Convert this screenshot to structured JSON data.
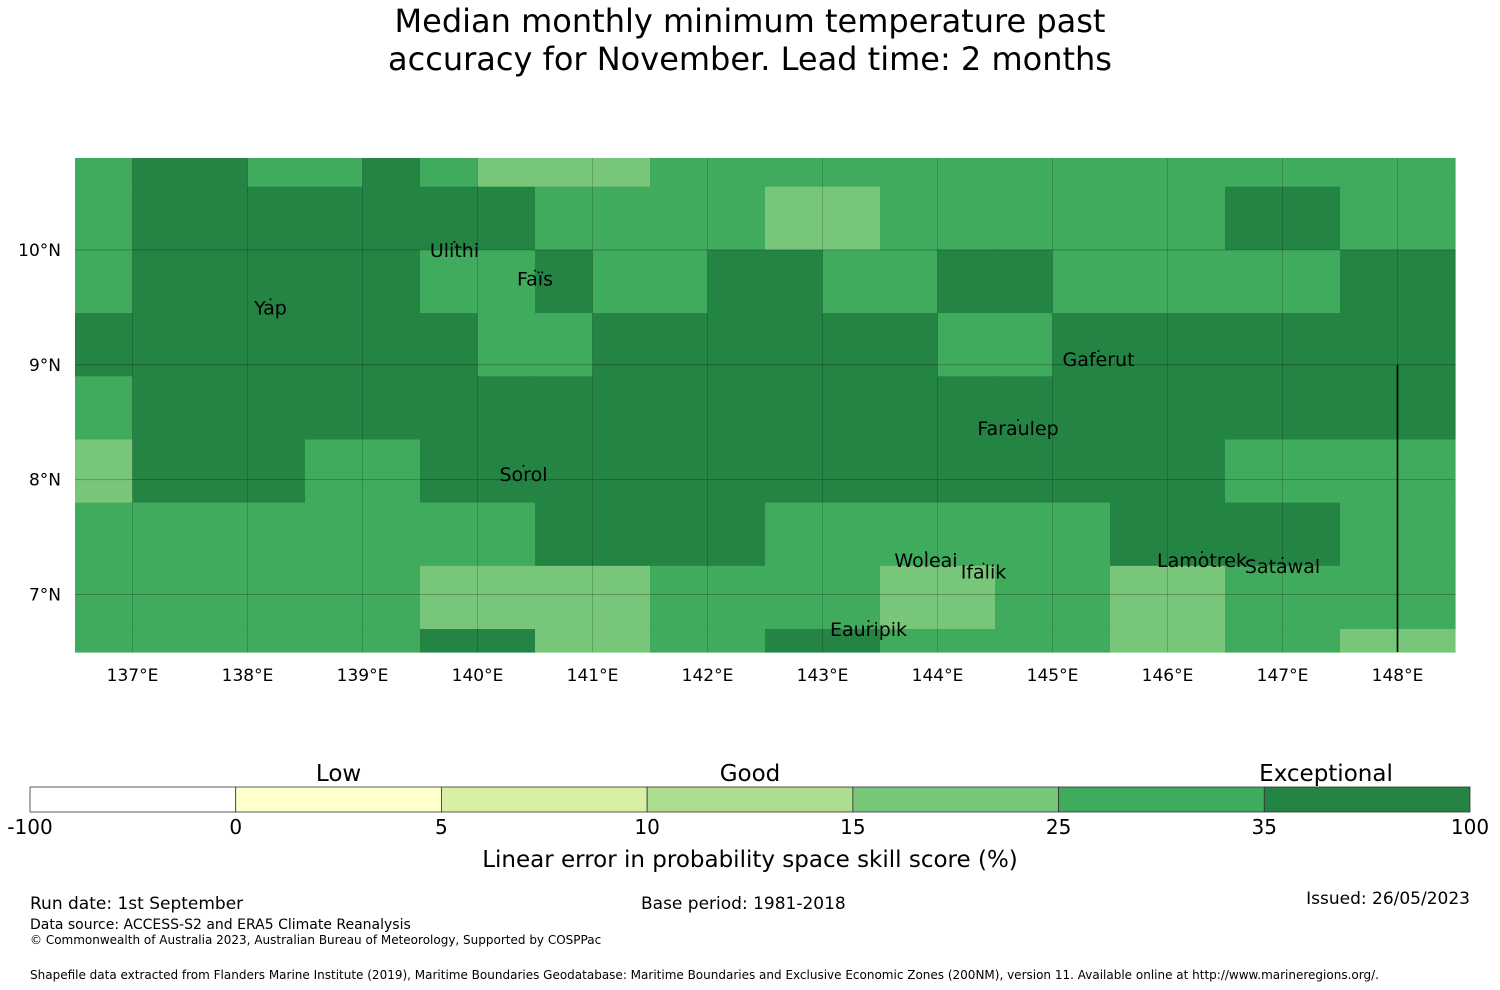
{
  "title_line1": "Median monthly minimum temperature past",
  "title_line2": "accuracy for November. Lead time: 2 months",
  "colors": {
    "c25": "#41ab5d",
    "c15": "#78c679",
    "c35": "#238443",
    "c5": "#d9f0a3",
    "c10": "#addd8e",
    "c0": "#ffffcc",
    "cneg": "#ffffff"
  },
  "map": {
    "lon_min": 136.5,
    "lon_max": 148.5,
    "lat_min": 6.5,
    "lat_max": 10.8,
    "cell_deg": 0.8333,
    "grid_rows_top_to_bottom": [
      [
        "c25",
        "c35",
        "c35",
        "c25",
        "c25",
        "c35",
        "c25",
        "c15",
        "c15",
        "c15",
        "c25",
        "c25",
        "c25",
        "c25",
        "c25",
        "c25",
        "c25",
        "c25",
        "c25",
        "c25",
        "c25",
        "c25",
        "c25",
        "c25"
      ],
      [
        "c25",
        "c35",
        "c35",
        "c35",
        "c35",
        "c35",
        "c35",
        "c35",
        "c25",
        "c25",
        "c25",
        "c25",
        "c15",
        "c15",
        "c25",
        "c25",
        "c25",
        "c25",
        "c25",
        "c25",
        "c35",
        "c35",
        "c25",
        "c25"
      ],
      [
        "c25",
        "c35",
        "c35",
        "c35",
        "c35",
        "c35",
        "c25",
        "c25",
        "c35",
        "c25",
        "c25",
        "c35",
        "c35",
        "c25",
        "c25",
        "c35",
        "c35",
        "c25",
        "c25",
        "c25",
        "c25",
        "c25",
        "c35",
        "c35"
      ],
      [
        "c35",
        "c35",
        "c35",
        "c35",
        "c35",
        "c35",
        "c35",
        "c25",
        "c25",
        "c35",
        "c35",
        "c35",
        "c35",
        "c35",
        "c35",
        "c25",
        "c25",
        "c35",
        "c35",
        "c35",
        "c35",
        "c35",
        "c35",
        "c35"
      ],
      [
        "c25",
        "c35",
        "c35",
        "c35",
        "c35",
        "c35",
        "c35",
        "c35",
        "c35",
        "c35",
        "c35",
        "c35",
        "c35",
        "c35",
        "c35",
        "c35",
        "c35",
        "c35",
        "c35",
        "c35",
        "c35",
        "c35",
        "c35",
        "c35"
      ],
      [
        "c15",
        "c35",
        "c35",
        "c35",
        "c25",
        "c25",
        "c35",
        "c35",
        "c35",
        "c35",
        "c35",
        "c35",
        "c35",
        "c35",
        "c35",
        "c35",
        "c35",
        "c35",
        "c35",
        "c35",
        "c25",
        "c25",
        "c25",
        "c25"
      ],
      [
        "c25",
        "c25",
        "c25",
        "c25",
        "c25",
        "c25",
        "c25",
        "c25",
        "c35",
        "c35",
        "c35",
        "c35",
        "c25",
        "c25",
        "c25",
        "c25",
        "c25",
        "c25",
        "c35",
        "c35",
        "c35",
        "c35",
        "c25",
        "c25"
      ],
      [
        "c25",
        "c25",
        "c25",
        "c25",
        "c25",
        "c25",
        "c15",
        "c15",
        "c15",
        "c15",
        "c25",
        "c25",
        "c25",
        "c25",
        "c15",
        "c15",
        "c25",
        "c25",
        "c15",
        "c15",
        "c25",
        "c25",
        "c25",
        "c25"
      ],
      [
        "c25",
        "c25",
        "c25",
        "c25",
        "c25",
        "c25",
        "c35",
        "c35",
        "c15",
        "c15",
        "c25",
        "c25",
        "c35",
        "c35",
        "c25",
        "c25",
        "c25",
        "c25",
        "c15",
        "c15",
        "c25",
        "c25",
        "c15",
        "c15"
      ]
    ],
    "x_ticks": [
      {
        "lon": 137,
        "label": "137°E"
      },
      {
        "lon": 138,
        "label": "138°E"
      },
      {
        "lon": 139,
        "label": "139°E"
      },
      {
        "lon": 140,
        "label": "140°E"
      },
      {
        "lon": 141,
        "label": "141°E"
      },
      {
        "lon": 142,
        "label": "142°E"
      },
      {
        "lon": 143,
        "label": "143°E"
      },
      {
        "lon": 144,
        "label": "144°E"
      },
      {
        "lon": 145,
        "label": "145°E"
      },
      {
        "lon": 146,
        "label": "146°E"
      },
      {
        "lon": 147,
        "label": "147°E"
      },
      {
        "lon": 148,
        "label": "148°E"
      }
    ],
    "y_ticks": [
      {
        "lat": 10,
        "label": "10°N"
      },
      {
        "lat": 9,
        "label": "9°N"
      },
      {
        "lat": 8,
        "label": "8°N"
      },
      {
        "lat": 7,
        "label": "7°N"
      }
    ],
    "places": [
      {
        "name": "Ulithi",
        "lon": 139.8,
        "lat": 10.0
      },
      {
        "name": "Faïs",
        "lon": 140.5,
        "lat": 9.75
      },
      {
        "name": "Yap",
        "lon": 138.2,
        "lat": 9.5
      },
      {
        "name": "Gaferut",
        "lon": 145.4,
        "lat": 9.05
      },
      {
        "name": "Faraulep",
        "lon": 144.7,
        "lat": 8.45
      },
      {
        "name": "Sorol",
        "lon": 140.4,
        "lat": 8.05
      },
      {
        "name": "Woleai",
        "lon": 143.9,
        "lat": 7.3
      },
      {
        "name": "Ifalik",
        "lon": 144.4,
        "lat": 7.2
      },
      {
        "name": "Lamotrek",
        "lon": 146.3,
        "lat": 7.3
      },
      {
        "name": "Satawal",
        "lon": 147.0,
        "lat": 7.25
      },
      {
        "name": "Eauripik",
        "lon": 143.4,
        "lat": 6.7
      }
    ],
    "boundary_line": {
      "lon": 148.0,
      "lat_from": 6.5,
      "lat_to": 9.0
    }
  },
  "legend": {
    "bounds": [
      "-100",
      "0",
      "5",
      "10",
      "15",
      "25",
      "35",
      "100"
    ],
    "colors": [
      "cneg",
      "c0",
      "c5",
      "c10",
      "c15",
      "c25",
      "c35"
    ],
    "categories": [
      {
        "label": "Low",
        "at_bound_index": 1.5
      },
      {
        "label": "Good",
        "at_bound_index": 3.5
      },
      {
        "label": "Exceptional",
        "at_bound_index": 6.3
      }
    ],
    "label": "Linear error in probability space skill score (%)"
  },
  "footer": {
    "run_date": "Run date: 1st September",
    "base_period": "Base period: 1981-2018",
    "issued": "Issued: 26/05/2023",
    "data_source": "Data source: ACCESS-S2 and ERA5 Climate Reanalysis",
    "copyright": "© Commonwealth of Australia 2023, Australian Bureau of Meteorology, Supported by COSPPac",
    "shapefile": "Shapefile data extracted from Flanders Marine Institute (2019), Maritime Boundaries Geodatabase: Maritime Boundaries and Exclusive Economic Zones (200NM), version 11. Available online at http://www.marineregions.org/."
  }
}
